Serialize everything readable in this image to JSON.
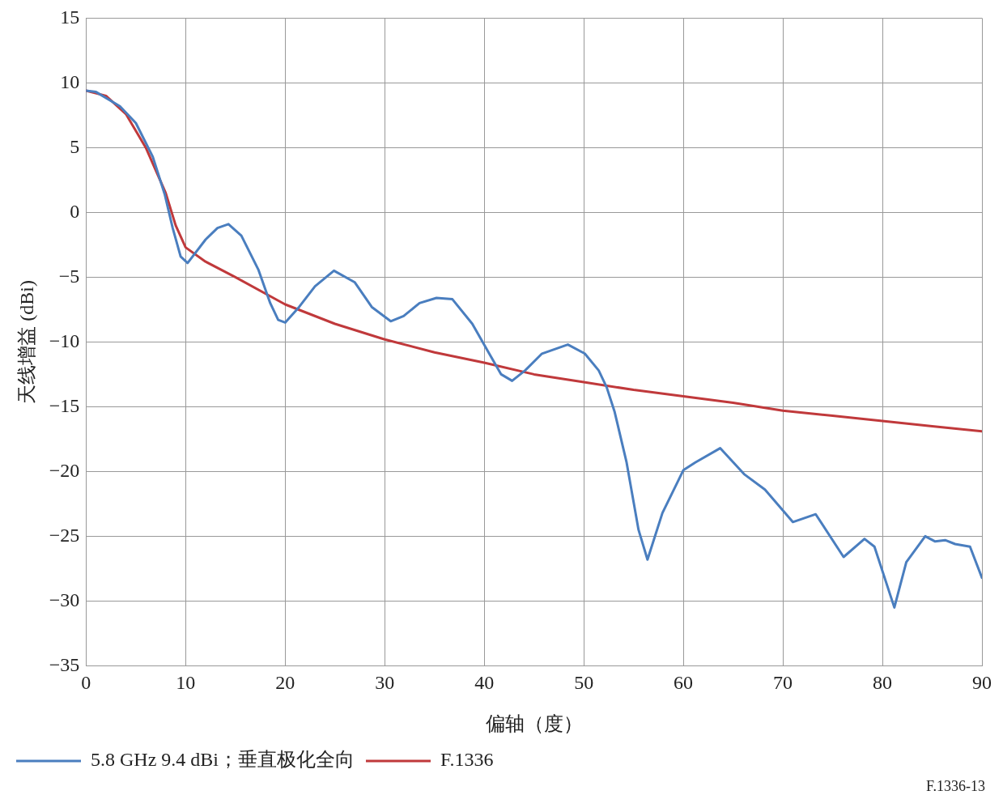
{
  "chart_data": {
    "type": "line",
    "xlabel": "偏轴（度）",
    "ylabel": "天线增益 (dBi)",
    "xlim": [
      0,
      90
    ],
    "xticks": [
      0,
      10,
      20,
      30,
      40,
      50,
      60,
      70,
      80,
      90
    ],
    "ylim": [
      -35,
      15
    ],
    "yticks": [
      {
        "value": -35,
        "label": "−35"
      },
      {
        "value": -30,
        "label": "−30"
      },
      {
        "value": -25,
        "label": "−25"
      },
      {
        "value": -20,
        "label": "−20"
      },
      {
        "value": -15,
        "label": "−15"
      },
      {
        "value": -10,
        "label": "−10"
      },
      {
        "value": -5,
        "label": "−5"
      },
      0,
      5,
      10,
      15
    ],
    "grid": true,
    "legend": "bottom left",
    "marker": "none",
    "line_style": "solid",
    "annotations": [
      "F.1336-13"
    ],
    "series": [
      {
        "name": "5.8 GHz 9.4 dBi；垂直极化全向",
        "color": "#4a7ebf",
        "x": [
          0,
          1,
          3.4,
          5,
          6.7,
          7.9,
          8.7,
          9.5,
          10.2,
          12,
          13.2,
          14.3,
          15.6,
          17.3,
          18.5,
          19.3,
          20,
          21.4,
          23,
          24.9,
          27,
          28.7,
          30.6,
          31.9,
          33.5,
          35.2,
          36.8,
          38.8,
          40.5,
          41.7,
          42.8,
          44.1,
          45.8,
          48.4,
          50.1,
          51.5,
          52.3,
          53.1,
          54.3,
          55.5,
          56.4,
          57.9,
          60,
          61.2,
          63.7,
          66.1,
          68.2,
          71,
          73.3,
          76.1,
          78.2,
          79.2,
          81.2,
          82.4,
          84.3,
          85.3,
          86.3,
          87.3,
          88.8,
          90
        ],
        "values": [
          9.4,
          9.3,
          8.2,
          6.9,
          4.3,
          1.4,
          -1.2,
          -3.4,
          -3.9,
          -2.1,
          -1.2,
          -0.9,
          -1.8,
          -4.4,
          -7,
          -8.3,
          -8.5,
          -7.3,
          -5.7,
          -4.5,
          -5.4,
          -7.3,
          -8.4,
          -8,
          -7,
          -6.6,
          -6.7,
          -8.6,
          -10.9,
          -12.5,
          -13,
          -12.2,
          -10.9,
          -10.2,
          -10.9,
          -12.2,
          -13.5,
          -15.4,
          -19.3,
          -24.5,
          -26.8,
          -23.2,
          -19.9,
          -19.3,
          -18.2,
          -20.2,
          -21.4,
          -23.9,
          -23.3,
          -26.6,
          -25.2,
          -25.8,
          -30.5,
          -27,
          -25,
          -25.4,
          -25.3,
          -25.6,
          -25.8,
          -28.2
        ]
      },
      {
        "name": "F.1336",
        "color": "#c0393b",
        "x": [
          0,
          2,
          4,
          6,
          8,
          9,
          10,
          12,
          15,
          20,
          25,
          30,
          35,
          40,
          45,
          50,
          55,
          60,
          65,
          70,
          75,
          80,
          85,
          90
        ],
        "values": [
          9.4,
          9,
          7.6,
          5,
          1.5,
          -1,
          -2.7,
          -3.8,
          -5,
          -7.1,
          -8.6,
          -9.8,
          -10.8,
          -11.6,
          -12.5,
          -13.1,
          -13.7,
          -14.2,
          -14.7,
          -15.3,
          -15.7,
          -16.1,
          -16.5,
          -16.9
        ]
      }
    ]
  }
}
